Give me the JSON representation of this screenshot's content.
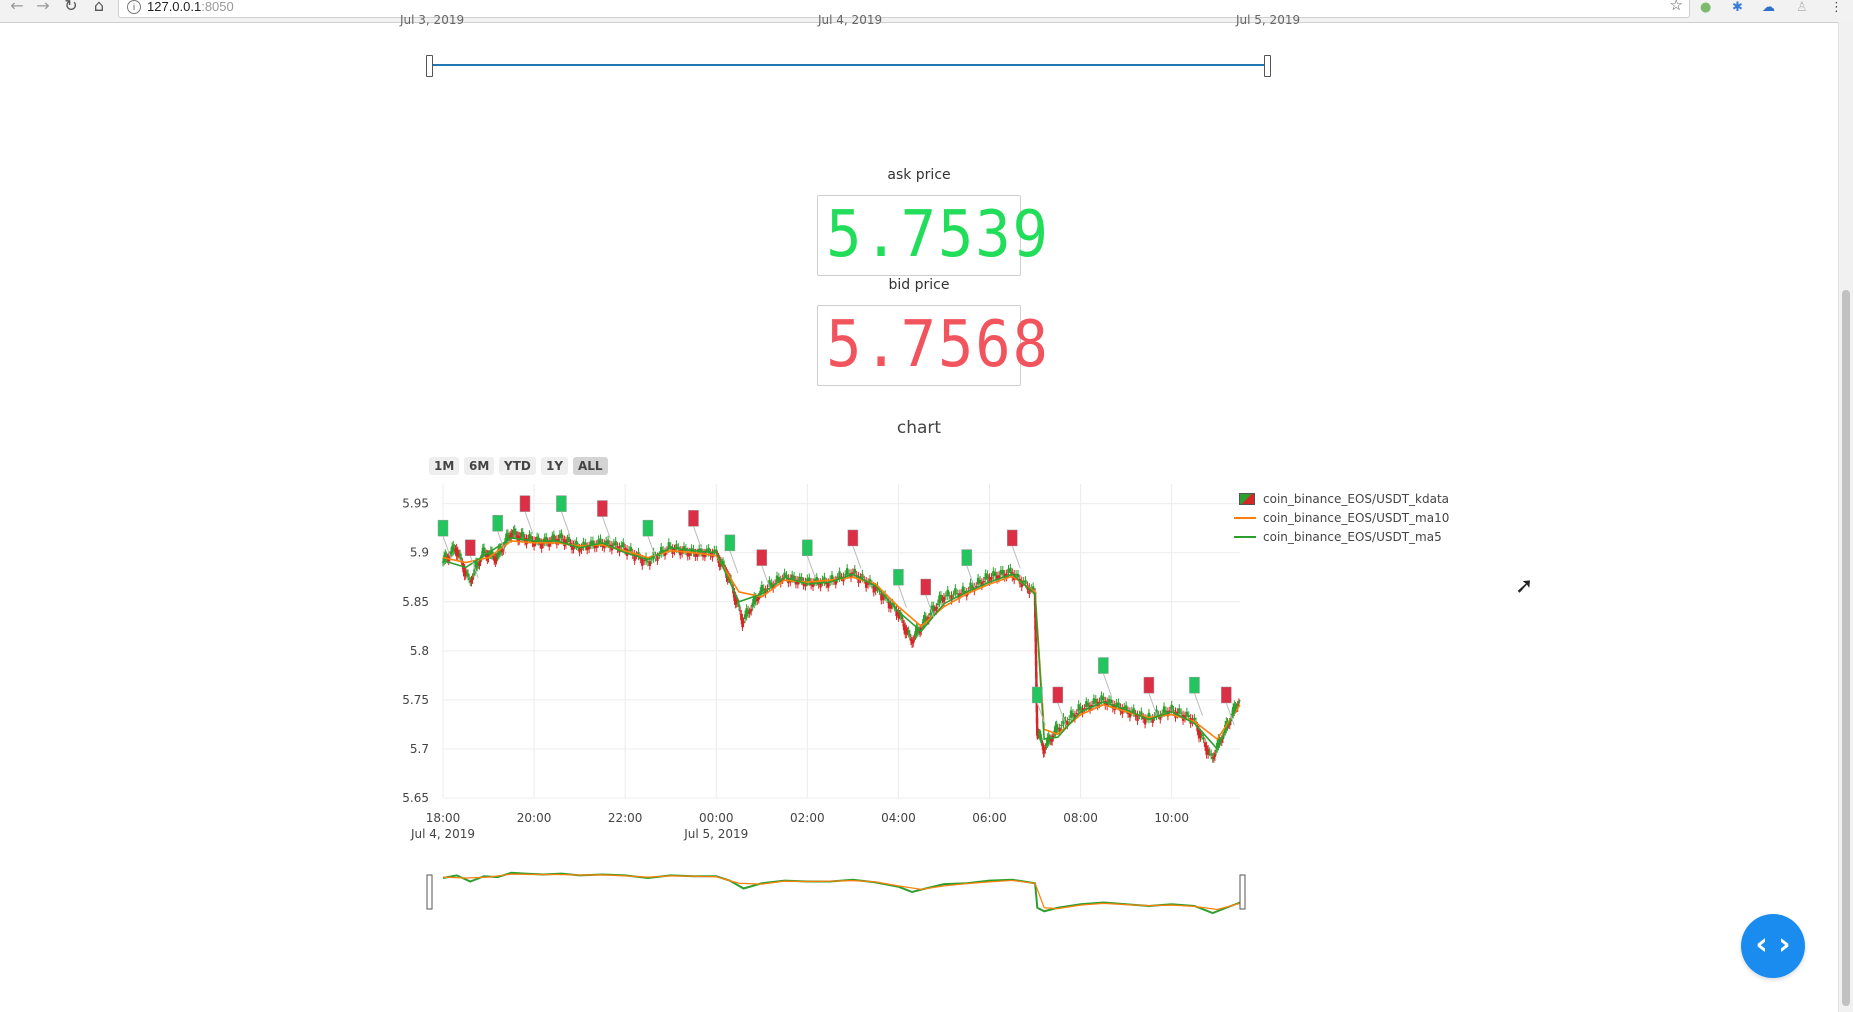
{
  "browser": {
    "url_host": "127.0.0.1",
    "url_port": ":8050",
    "info_glyph": "i",
    "star_glyph": "☆"
  },
  "top_slider": {
    "ticks": [
      "Jul 3, 2019",
      "Jul 4, 2019",
      "Jul 5, 2019"
    ]
  },
  "ask": {
    "label": "ask price",
    "value": "5.7539",
    "color": "#22dd5a"
  },
  "bid": {
    "label": "bid price",
    "value": "5.7568",
    "color": "#f2545e"
  },
  "chart": {
    "title": "chart",
    "range_buttons": [
      "1M",
      "6M",
      "YTD",
      "1Y",
      "ALL"
    ],
    "legend": [
      {
        "name": "coin_binance_EOS/USDT_kdata",
        "color": "#2ca02c"
      },
      {
        "name": "coin_binance_EOS/USDT_ma10",
        "color": "#ff7f0e"
      },
      {
        "name": "coin_binance_EOS/USDT_ma5",
        "color": "#2ca02c"
      }
    ]
  },
  "chart_data": {
    "type": "line",
    "title": "chart",
    "xlabel": "",
    "ylabel": "",
    "x_ticks": [
      "18:00",
      "20:00",
      "22:00",
      "00:00",
      "02:00",
      "04:00",
      "06:00",
      "08:00",
      "10:00"
    ],
    "x_tick_sublabels": [
      "Jul 4, 2019",
      "",
      "",
      "Jul 5, 2019",
      "",
      "",
      "",
      "",
      ""
    ],
    "y_ticks": [
      5.65,
      5.7,
      5.75,
      5.8,
      5.85,
      5.9,
      5.95
    ],
    "ylim": [
      5.65,
      5.97
    ],
    "xlim_hours": [
      18.0,
      35.5
    ],
    "grid": true,
    "legend_position": "top-right",
    "series": [
      {
        "name": "coin_binance_EOS/USDT_kdata",
        "x_hours": [
          18.0,
          18.3,
          18.6,
          18.9,
          19.2,
          19.5,
          19.8,
          20.2,
          20.6,
          21.0,
          21.5,
          22.0,
          22.5,
          23.0,
          23.5,
          24.0,
          24.3,
          24.6,
          25.0,
          25.5,
          26.0,
          26.5,
          27.0,
          27.5,
          28.0,
          28.3,
          28.6,
          29.0,
          29.5,
          30.0,
          30.5,
          31.0,
          31.05,
          31.2,
          31.5,
          32.0,
          32.5,
          33.0,
          33.5,
          34.0,
          34.5,
          34.9,
          35.2,
          35.5
        ],
        "values": [
          5.89,
          5.905,
          5.87,
          5.9,
          5.895,
          5.92,
          5.915,
          5.91,
          5.915,
          5.905,
          5.91,
          5.905,
          5.89,
          5.905,
          5.9,
          5.9,
          5.875,
          5.83,
          5.86,
          5.875,
          5.87,
          5.87,
          5.88,
          5.865,
          5.84,
          5.81,
          5.83,
          5.855,
          5.86,
          5.875,
          5.88,
          5.86,
          5.72,
          5.7,
          5.72,
          5.74,
          5.75,
          5.74,
          5.73,
          5.74,
          5.73,
          5.69,
          5.72,
          5.75
        ]
      },
      {
        "name": "coin_binance_EOS/USDT_ma10",
        "x_hours": [
          18.0,
          18.5,
          19.0,
          19.5,
          20.0,
          20.5,
          21.0,
          21.5,
          22.0,
          22.5,
          23.0,
          23.5,
          24.0,
          24.5,
          25.0,
          25.5,
          26.0,
          26.5,
          27.0,
          27.5,
          28.0,
          28.5,
          29.0,
          29.5,
          30.0,
          30.5,
          31.0,
          31.2,
          31.5,
          32.0,
          32.5,
          33.0,
          33.5,
          34.0,
          34.5,
          35.0,
          35.5
        ],
        "values": [
          5.895,
          5.89,
          5.895,
          5.912,
          5.91,
          5.91,
          5.907,
          5.908,
          5.902,
          5.895,
          5.902,
          5.9,
          5.897,
          5.86,
          5.855,
          5.872,
          5.87,
          5.872,
          5.875,
          5.868,
          5.845,
          5.825,
          5.845,
          5.858,
          5.868,
          5.876,
          5.86,
          5.72,
          5.715,
          5.735,
          5.745,
          5.738,
          5.732,
          5.735,
          5.728,
          5.71,
          5.745
        ]
      },
      {
        "name": "coin_binance_EOS/USDT_ma5",
        "x_hours": [
          18.0,
          18.5,
          19.0,
          19.5,
          20.0,
          20.5,
          21.0,
          21.5,
          22.0,
          22.5,
          23.0,
          23.5,
          24.0,
          24.5,
          25.0,
          25.5,
          26.0,
          26.5,
          27.0,
          27.5,
          28.0,
          28.5,
          29.0,
          29.5,
          30.0,
          30.5,
          31.0,
          31.2,
          31.5,
          32.0,
          32.5,
          33.0,
          33.5,
          34.0,
          34.5,
          35.0,
          35.5
        ],
        "values": [
          5.892,
          5.885,
          5.9,
          5.915,
          5.912,
          5.912,
          5.905,
          5.91,
          5.9,
          5.893,
          5.905,
          5.902,
          5.9,
          5.85,
          5.858,
          5.875,
          5.868,
          5.87,
          5.878,
          5.866,
          5.84,
          5.82,
          5.848,
          5.86,
          5.87,
          5.878,
          5.858,
          5.71,
          5.712,
          5.738,
          5.748,
          5.74,
          5.73,
          5.738,
          5.726,
          5.7,
          5.75
        ]
      }
    ]
  }
}
